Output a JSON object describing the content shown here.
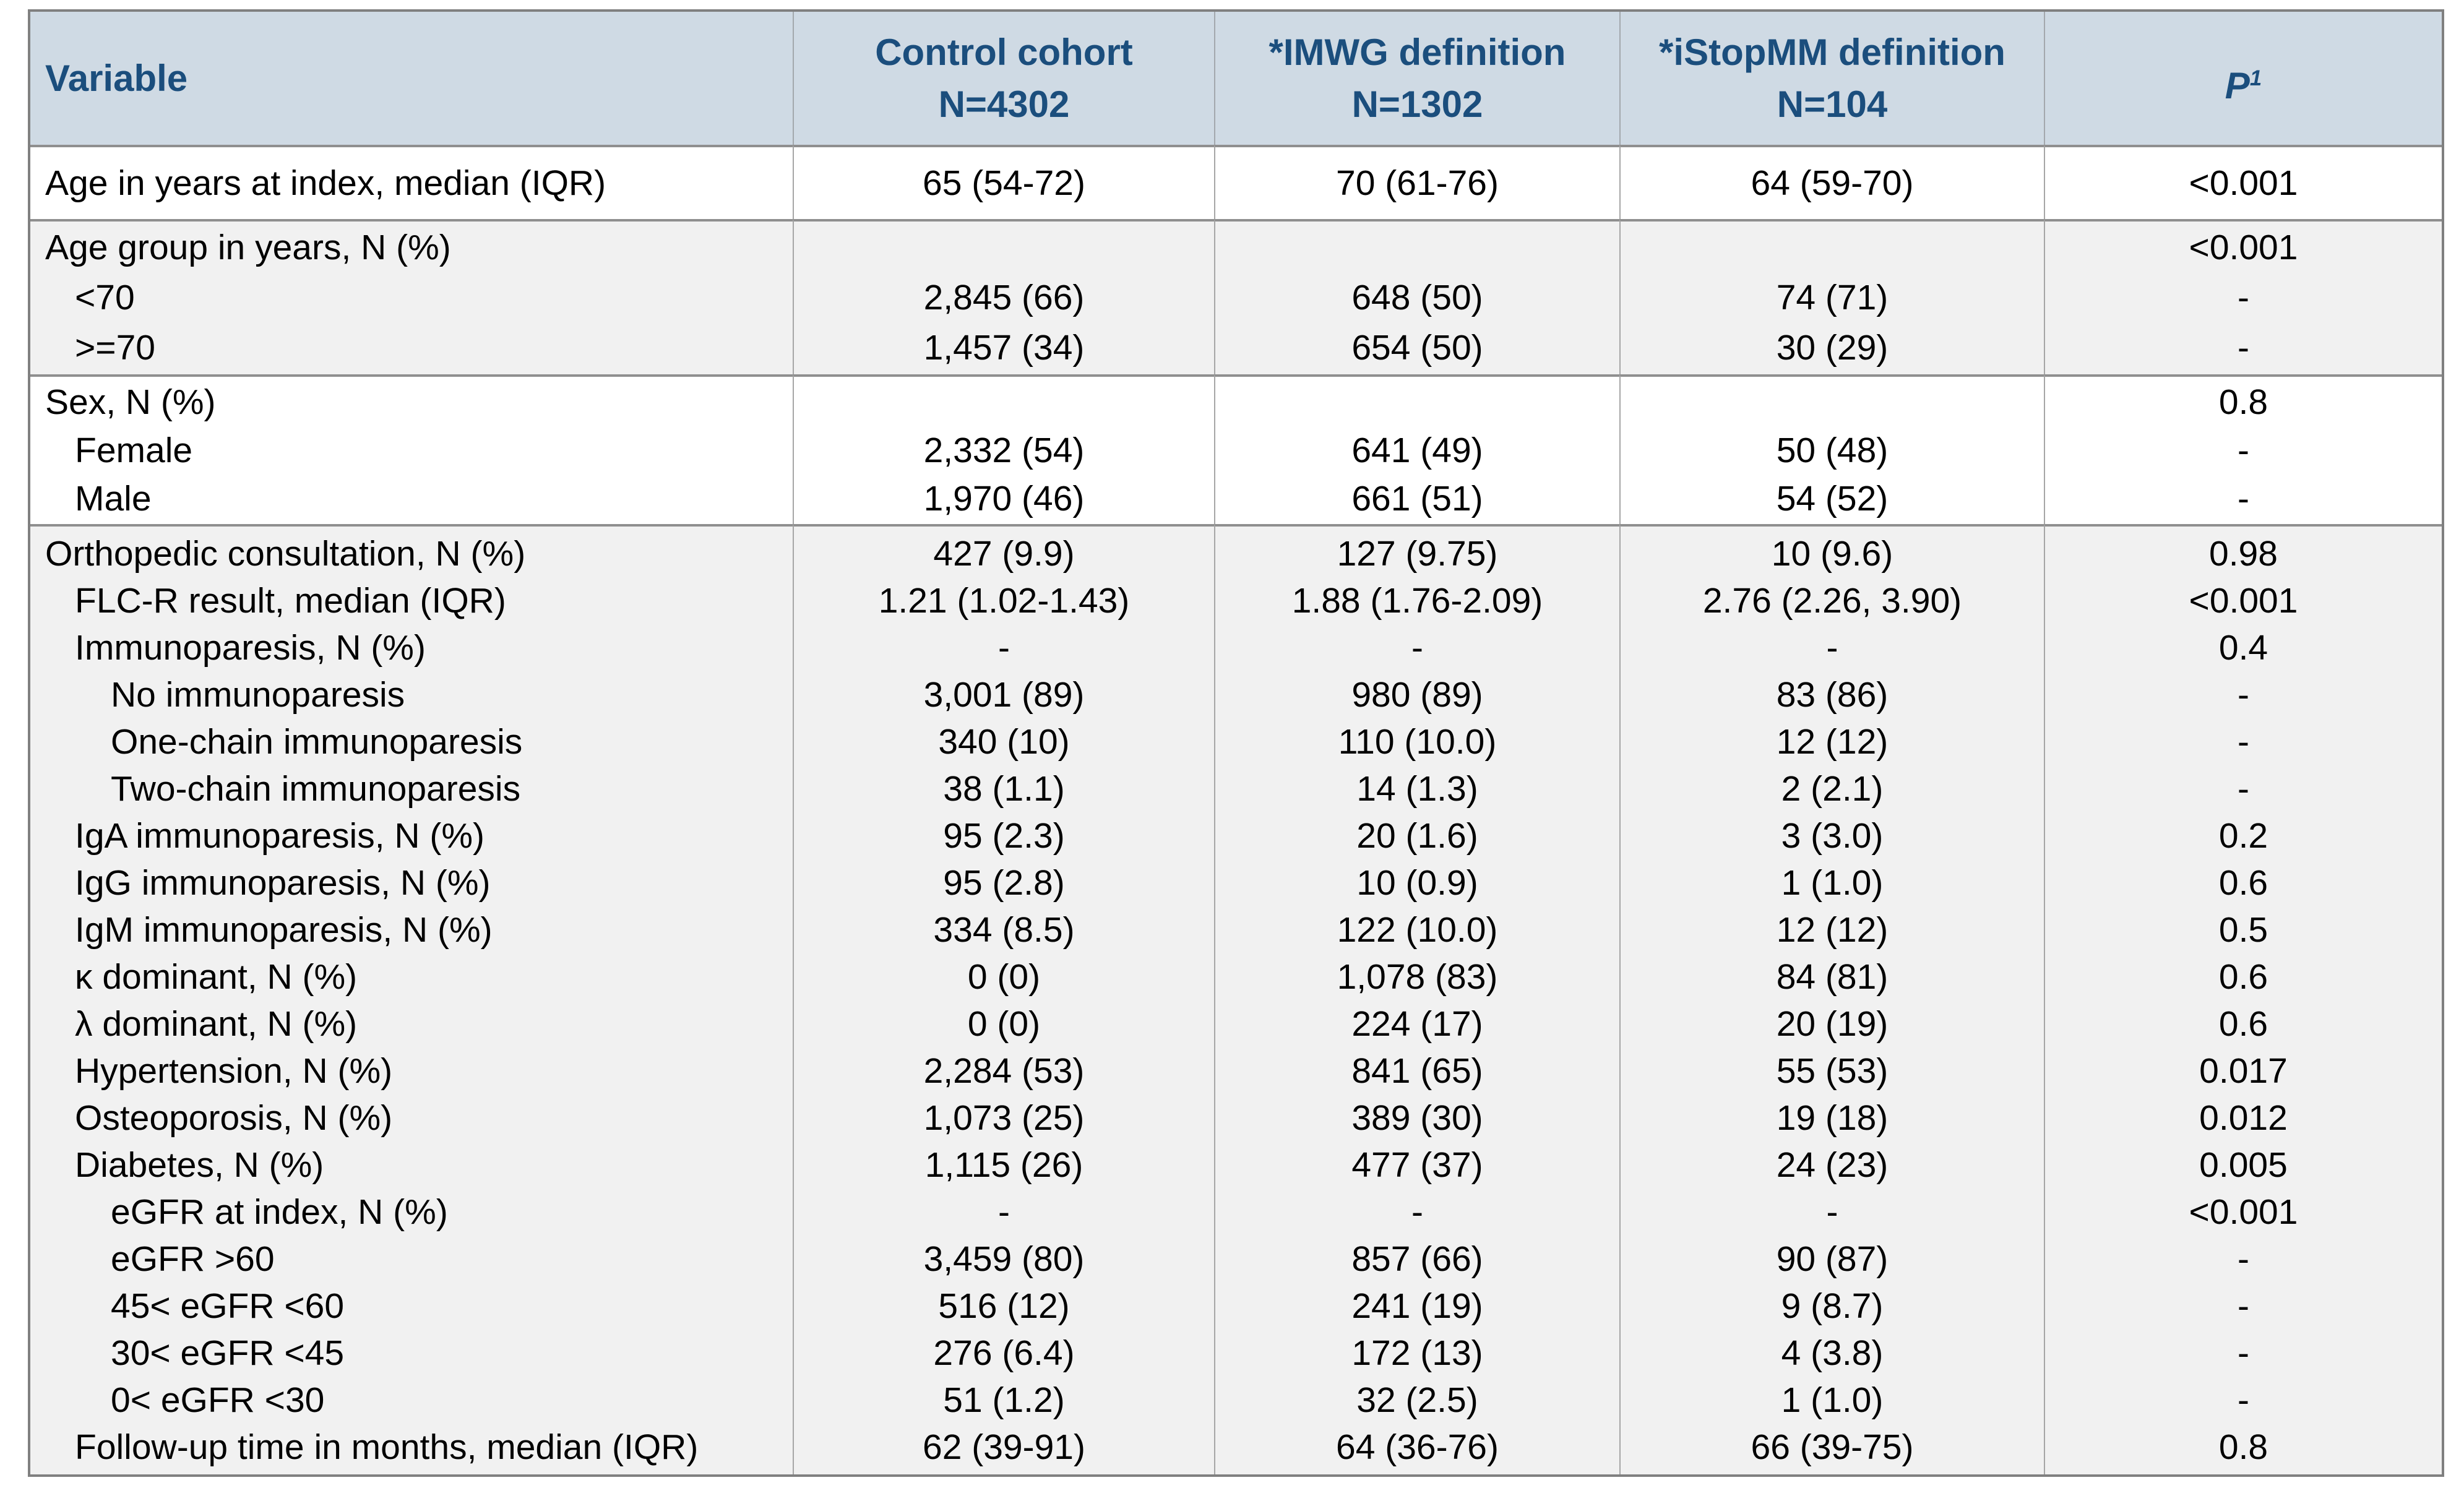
{
  "colors": {
    "header_background": "#cfdae4",
    "header_text": "#1b4e7d",
    "section_alt_background": "#f1f1f1",
    "rule_line": "#8f8f8f",
    "outer_border": "#808080",
    "body_text": "#000000"
  },
  "table": {
    "columns": [
      {
        "label": "Variable"
      },
      {
        "label": "Control cohort",
        "sublabel": "N=4302"
      },
      {
        "label": "*IMWG definition",
        "sublabel": "N=1302"
      },
      {
        "label": "*iStopMM definition",
        "sublabel": "N=104"
      },
      {
        "label": "P",
        "superscript": "1"
      }
    ],
    "sections": [
      {
        "shade": "white",
        "rows": [
          {
            "label": "Age in years at index, median (IQR)",
            "indent": 0,
            "values": [
              "65 (54-72)",
              "70 (61-76)",
              "64 (59-70)",
              "<0.001"
            ]
          }
        ]
      },
      {
        "shade": "gray",
        "rows": [
          {
            "label": "Age group in years, N (%)",
            "indent": 0,
            "values": [
              "",
              "",
              "",
              "<0.001"
            ]
          },
          {
            "label": "<70",
            "indent": 1,
            "values": [
              "2,845 (66)",
              "648 (50)",
              "74 (71)",
              "-"
            ]
          },
          {
            "label": ">=70",
            "indent": 1,
            "values": [
              "1,457 (34)",
              "654 (50)",
              "30 (29)",
              "-"
            ]
          }
        ]
      },
      {
        "shade": "white",
        "rows": [
          {
            "label": "Sex, N (%)",
            "indent": 0,
            "values": [
              "",
              "",
              "",
              "0.8"
            ]
          },
          {
            "label": "Female",
            "indent": 1,
            "values": [
              "2,332 (54)",
              "641 (49)",
              "50 (48)",
              "-"
            ]
          },
          {
            "label": "Male",
            "indent": 1,
            "values": [
              "1,970 (46)",
              "661 (51)",
              "54 (52)",
              "-"
            ]
          }
        ]
      },
      {
        "shade": "gray",
        "rows": [
          {
            "label": "Orthopedic consultation, N (%)",
            "indent": 0,
            "values": [
              "427 (9.9)",
              "127 (9.75)",
              "10 (9.6)",
              "0.98"
            ]
          },
          {
            "label": "FLC-R result, median (IQR)",
            "indent": 1,
            "values": [
              "1.21 (1.02-1.43)",
              "1.88 (1.76-2.09)",
              "2.76 (2.26, 3.90)",
              "<0.001"
            ]
          },
          {
            "label": "Immunoparesis, N (%)",
            "indent": 1,
            "values": [
              "-",
              "-",
              "-",
              "0.4"
            ]
          },
          {
            "label": "No immunoparesis",
            "indent": 2,
            "values": [
              "3,001 (89)",
              "980 (89)",
              "83 (86)",
              "-"
            ]
          },
          {
            "label": "One-chain immunoparesis",
            "indent": 2,
            "values": [
              "340 (10)",
              "110 (10.0)",
              "12 (12)",
              "-"
            ]
          },
          {
            "label": "Two-chain immunoparesis",
            "indent": 2,
            "values": [
              "38 (1.1)",
              "14 (1.3)",
              "2 (2.1)",
              "-"
            ]
          },
          {
            "label": "IgA immunoparesis, N (%)",
            "indent": 1,
            "values": [
              "95 (2.3)",
              "20 (1.6)",
              "3 (3.0)",
              "0.2"
            ]
          },
          {
            "label": "IgG immunoparesis, N (%)",
            "indent": 1,
            "values": [
              "95 (2.8)",
              "10 (0.9)",
              "1 (1.0)",
              "0.6"
            ]
          },
          {
            "label": "IgM immunoparesis, N (%)",
            "indent": 1,
            "values": [
              "334 (8.5)",
              "122 (10.0)",
              "12 (12)",
              "0.5"
            ]
          },
          {
            "label": "κ dominant, N (%)",
            "indent": 1,
            "values": [
              "0 (0)",
              "1,078 (83)",
              "84 (81)",
              "0.6"
            ]
          },
          {
            "label": "λ dominant, N (%)",
            "indent": 1,
            "values": [
              "0 (0)",
              "224 (17)",
              "20 (19)",
              "0.6"
            ]
          },
          {
            "label": "Hypertension, N (%)",
            "indent": 1,
            "values": [
              "2,284 (53)",
              "841 (65)",
              "55 (53)",
              "0.017"
            ]
          },
          {
            "label": "Osteoporosis, N (%)",
            "indent": 1,
            "values": [
              "1,073 (25)",
              "389 (30)",
              "19 (18)",
              "0.012"
            ]
          },
          {
            "label": "Diabetes, N (%)",
            "indent": 1,
            "values": [
              "1,115 (26)",
              "477 (37)",
              "24 (23)",
              "0.005"
            ]
          },
          {
            "label": "eGFR at index, N (%)",
            "indent": 2,
            "values": [
              "-",
              "-",
              "-",
              "<0.001"
            ]
          },
          {
            "label": "eGFR >60",
            "indent": 2,
            "values": [
              "3,459 (80)",
              "857 (66)",
              "90 (87)",
              "-"
            ]
          },
          {
            "label": "45< eGFR <60",
            "indent": 2,
            "values": [
              "516 (12)",
              "241 (19)",
              "9 (8.7)",
              "-"
            ]
          },
          {
            "label": "30< eGFR <45",
            "indent": 2,
            "values": [
              "276 (6.4)",
              "172 (13)",
              "4 (3.8)",
              "-"
            ]
          },
          {
            "label": "0< eGFR <30",
            "indent": 2,
            "values": [
              "51 (1.2)",
              "32 (2.5)",
              "1 (1.0)",
              "-"
            ]
          },
          {
            "label": "Follow-up time in months, median (IQR)",
            "indent": 1,
            "values": [
              "62 (39-91)",
              "64 (36-76)",
              "66 (39-75)",
              "0.8"
            ]
          }
        ]
      }
    ]
  }
}
